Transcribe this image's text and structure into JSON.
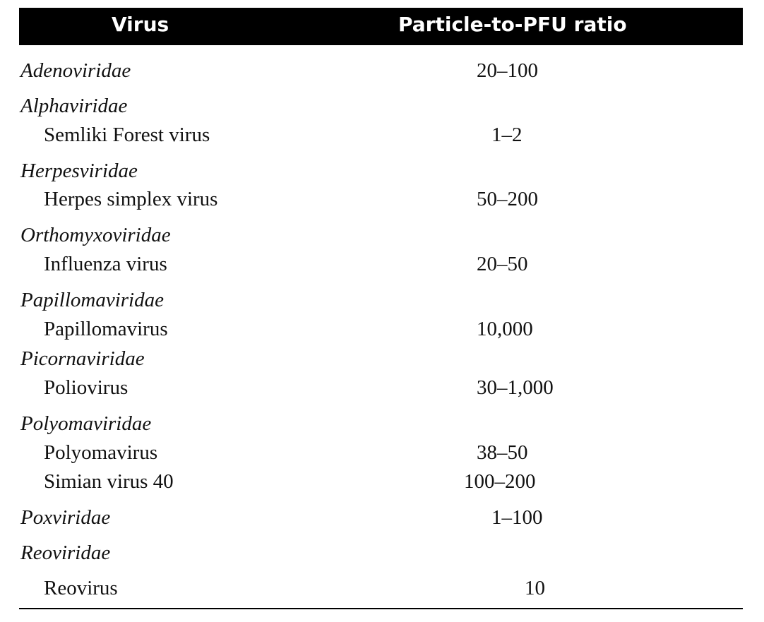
{
  "table": {
    "headers": {
      "virus": "Virus",
      "ratio": "Particle-to-PFU ratio"
    },
    "rows": [
      {
        "name": "Adenoviridae",
        "kind": "family",
        "ratio": "20–100"
      },
      {
        "name": "Alphaviridae",
        "kind": "family",
        "ratio": ""
      },
      {
        "name": "Semliki Forest virus",
        "kind": "virus",
        "ratio": "1–2"
      },
      {
        "name": "Herpesviridae",
        "kind": "family",
        "ratio": ""
      },
      {
        "name": "Herpes simplex virus",
        "kind": "virus",
        "ratio": "50–200"
      },
      {
        "name": "Orthomyxoviridae",
        "kind": "family",
        "ratio": ""
      },
      {
        "name": "Influenza virus",
        "kind": "virus",
        "ratio": "20–50"
      },
      {
        "name": "Papillomaviridae",
        "kind": "family",
        "ratio": ""
      },
      {
        "name": "Papillomavirus",
        "kind": "virus",
        "ratio": "10,000"
      },
      {
        "name": "Picornaviridae",
        "kind": "family",
        "ratio": ""
      },
      {
        "name": "Poliovirus",
        "kind": "virus",
        "ratio": "30–1,000"
      },
      {
        "name": "Polyomaviridae",
        "kind": "family",
        "ratio": ""
      },
      {
        "name": "Polyomavirus",
        "kind": "virus",
        "ratio": "38–50"
      },
      {
        "name": "Simian virus 40",
        "kind": "virus",
        "ratio": "100–200"
      },
      {
        "name": "Poxviridae",
        "kind": "family",
        "ratio": "1–100"
      },
      {
        "name": "Reoviridae",
        "kind": "family",
        "ratio": ""
      },
      {
        "name": "Reovirus",
        "kind": "virus",
        "ratio": "10"
      }
    ]
  }
}
